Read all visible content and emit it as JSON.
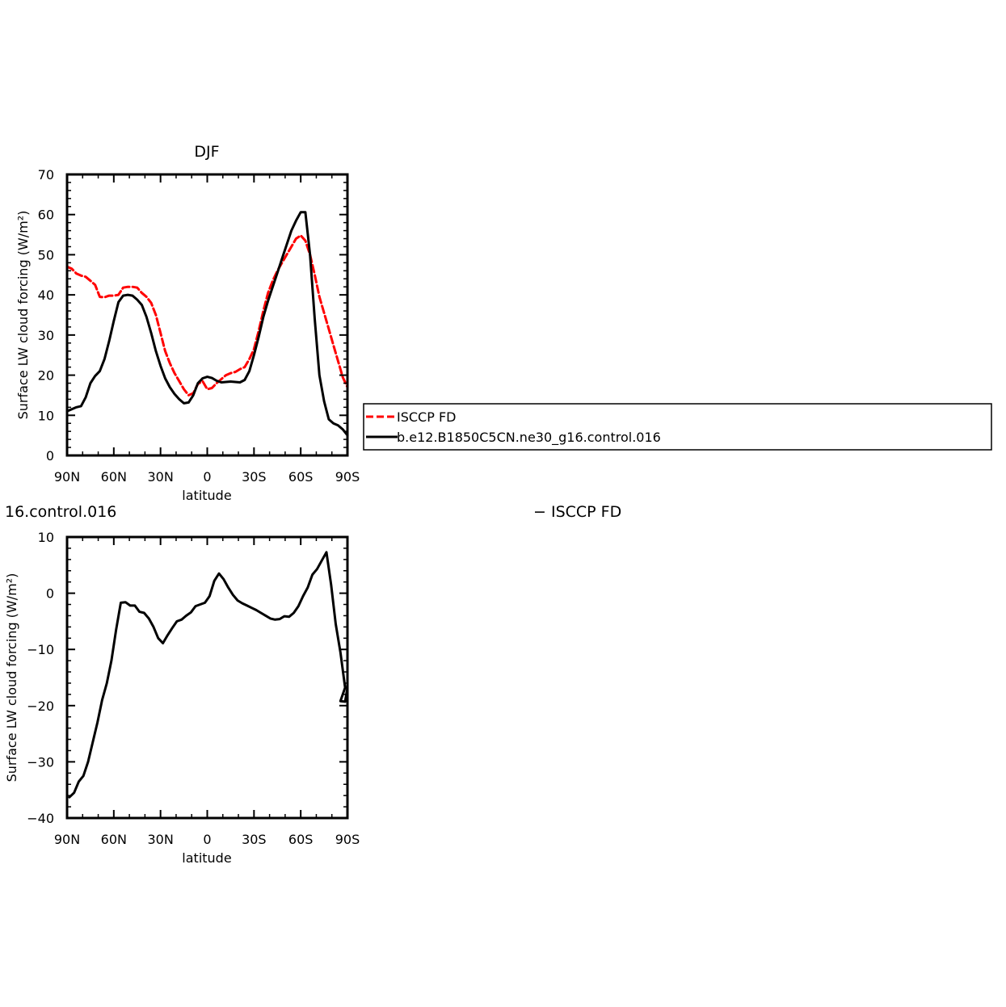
{
  "chart_data": [
    {
      "type": "line",
      "title": "DJF",
      "xlabel": "latitude",
      "ylabel": "Surface LW cloud forcing (W/m²)",
      "xlim": [
        90,
        -90
      ],
      "ylim": [
        0,
        70
      ],
      "xtick_values": [
        90,
        60,
        30,
        0,
        -30,
        -60,
        -90
      ],
      "xtick_labels": [
        "90N",
        "60N",
        "30N",
        "0",
        "30S",
        "60S",
        "90S"
      ],
      "ytick_values": [
        0,
        10,
        20,
        30,
        40,
        50,
        60,
        70
      ],
      "ytick_labels": [
        "0",
        "10",
        "20",
        "30",
        "40",
        "50",
        "60",
        "70"
      ],
      "legend": {
        "placement": "right",
        "entries": [
          "ISCCP FD",
          "b.e12.B1850C5CN.ne30_g16.control.016"
        ]
      },
      "series": [
        {
          "name": "ISCCP FD",
          "color": "#ff0000",
          "dash": true,
          "x": [
            90,
            87,
            84,
            81,
            78,
            75,
            72,
            69,
            66,
            63,
            60,
            57,
            54,
            51,
            48,
            45,
            42,
            39,
            36,
            33,
            30,
            27,
            24,
            21,
            18,
            15,
            12,
            9,
            6,
            3,
            0,
            -3,
            -6,
            -9,
            -12,
            -15,
            -18,
            -21,
            -24,
            -27,
            -30,
            -33,
            -36,
            -39,
            -42,
            -45,
            -48,
            -51,
            -54,
            -57,
            -60,
            -63,
            -66,
            -69,
            -72,
            -75,
            -78,
            -81,
            -84,
            -87,
            -90
          ],
          "y": [
            47,
            46.5,
            45.3,
            44.8,
            44.5,
            43.5,
            42.5,
            39.5,
            39.4,
            39.8,
            39.8,
            40,
            41.8,
            42,
            42,
            41.8,
            40.5,
            39.5,
            38,
            35,
            30.5,
            26,
            23,
            20.5,
            18.5,
            16.5,
            15,
            15.5,
            17.8,
            18.5,
            16.5,
            16.8,
            18,
            19,
            20,
            20.5,
            20.8,
            21.5,
            22,
            24,
            26.5,
            31,
            36,
            40.5,
            43.5,
            46,
            48,
            50,
            52,
            54,
            54.8,
            53.5,
            50,
            45,
            39.5,
            35.5,
            31.5,
            27.5,
            23.5,
            19.5,
            17
          ]
        },
        {
          "name": "b.e12.B1850C5CN.ne30_g16.control.016",
          "color": "#000000",
          "dash": false,
          "x": [
            90,
            87,
            84,
            81,
            78,
            75,
            72,
            69,
            66,
            63,
            60,
            57,
            54,
            51,
            48,
            45,
            42,
            39,
            36,
            33,
            30,
            27,
            24,
            21,
            18,
            15,
            12,
            9,
            6,
            3,
            0,
            -3,
            -6,
            -9,
            -12,
            -15,
            -18,
            -21,
            -24,
            -27,
            -30,
            -33,
            -36,
            -39,
            -42,
            -45,
            -48,
            -51,
            -54,
            -57,
            -60,
            -63,
            -66,
            -69,
            -72,
            -75,
            -78,
            -81,
            -84,
            -87,
            -90
          ],
          "y": [
            11,
            11.5,
            12,
            12.3,
            14.5,
            18,
            19.8,
            21,
            24,
            28.5,
            33.5,
            38.2,
            39.8,
            40,
            39.8,
            38.8,
            37.5,
            34.5,
            30.5,
            26,
            22.3,
            19.2,
            17,
            15.3,
            14,
            13,
            13.2,
            15,
            18,
            19.2,
            19.6,
            19.3,
            18.6,
            18.2,
            18.3,
            18.4,
            18.3,
            18.2,
            18.8,
            21,
            25,
            29.5,
            34.5,
            38.5,
            42,
            45.5,
            49,
            52.5,
            56,
            58.5,
            60.6,
            60.6,
            50,
            34,
            20,
            13.5,
            9,
            8,
            7.5,
            6.5,
            5
          ]
        }
      ]
    },
    {
      "type": "line",
      "title": "16.control.016",
      "title_right": "− ISCCP FD",
      "xlabel": "latitude",
      "ylabel": "Surface LW cloud forcing (W/m²)",
      "xlim": [
        90,
        -90
      ],
      "ylim": [
        -40,
        10
      ],
      "xtick_values": [
        90,
        60,
        30,
        0,
        -30,
        -60,
        -90
      ],
      "xtick_labels": [
        "90N",
        "60N",
        "30N",
        "0",
        "30S",
        "60S",
        "90S"
      ],
      "ytick_values": [
        -40,
        -30,
        -20,
        -10,
        0,
        10
      ],
      "ytick_labels": [
        "−40",
        "−30",
        "−20",
        "−10",
        "0",
        "10"
      ],
      "series": [
        {
          "color": "#000000",
          "dash": false,
          "x": [
            88.5,
            85.5,
            82.5,
            79.5,
            76.5,
            73.5,
            70.5,
            67.5,
            64.5,
            61.5,
            58.5,
            55.5,
            52.5,
            49.5,
            46.5,
            43.5,
            40.5,
            37.5,
            34.5,
            31.5,
            28.5,
            25.5,
            22.5,
            19.5,
            16.5,
            13.5,
            10.5,
            7.5,
            4.5,
            1.5,
            -1.5,
            -4.5,
            -7.5,
            -10.5,
            -13.5,
            -16.5,
            -19.5,
            -22.5,
            -25.5,
            -28.5,
            -31.5,
            -34.5,
            -37.5,
            -40.5,
            -43.5,
            -46.5,
            -49.5,
            -52.5,
            -55.5,
            -58.5,
            -61.5,
            -64.5,
            -67.5,
            -70.5,
            -73.5,
            -76.5,
            -79.5,
            -82.5,
            -85.5,
            -88.5
          ],
          "y": [
            -36.3,
            -35.5,
            -33.5,
            -32.5,
            -30,
            -26.5,
            -23,
            -19,
            -16,
            -12,
            -6.5,
            -1.7,
            -1.6,
            -2.2,
            -2.2,
            -3.3,
            -3.5,
            -4.5,
            -6,
            -8,
            -8.9,
            -7.5,
            -6.2,
            -5,
            -4.7,
            -4,
            -3.4,
            -2.3,
            -2,
            -1.7,
            -0.5,
            2.2,
            3.5,
            2.5,
            1,
            -0.3,
            -1.3,
            -1.8,
            -2.2,
            -2.6,
            -3,
            -3.5,
            -4,
            -4.5,
            -4.7,
            -4.6,
            -4.1,
            -4.2,
            -3.5,
            -2.3,
            -0.5,
            1,
            3.3,
            4.3,
            5.8,
            7.3,
            1.5,
            -5.5,
            -10.5,
            -16.8
          ]
        }
      ]
    }
  ],
  "extra_tail": {
    "x": [
      -85.5,
      -88.5,
      -90
    ],
    "y": [
      -19.2,
      -19.3,
      -16.8
    ]
  }
}
